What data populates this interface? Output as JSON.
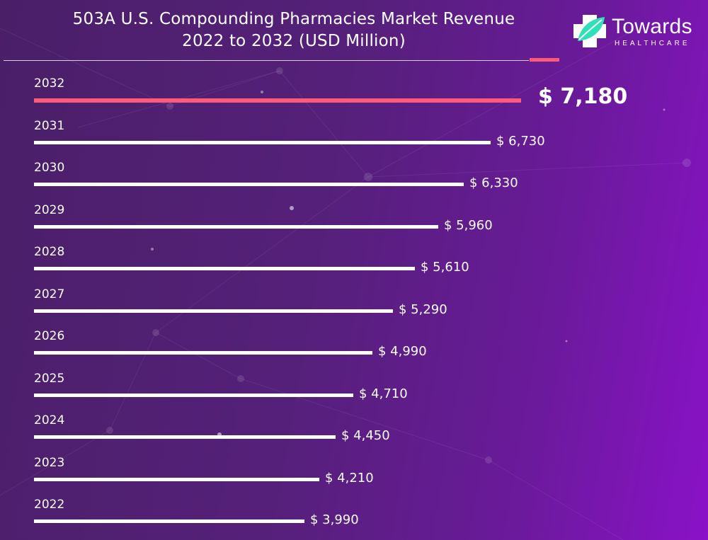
{
  "title_lines": [
    "503A U.S. Compounding Pharmacies Market Revenue",
    "2022 to 2032 (USD Million)"
  ],
  "logo": {
    "word": "Towards",
    "sub": "HEALTHCARE"
  },
  "colors": {
    "highlight": "#ff5a7a",
    "bar": "#ffffff",
    "logo_leaf": "#2fe0b8"
  },
  "chart_data": {
    "type": "bar",
    "orientation": "horizontal",
    "title": "503A U.S. Compounding Pharmacies Market Revenue 2022 to 2032 (USD Million)",
    "categories": [
      "2032",
      "2031",
      "2030",
      "2029",
      "2028",
      "2027",
      "2026",
      "2025",
      "2024",
      "2023",
      "2022"
    ],
    "values": [
      7180,
      6730,
      6330,
      5960,
      5610,
      5290,
      4990,
      4710,
      4450,
      4210,
      3990
    ],
    "value_labels": [
      "$ 7,180",
      "$ 6,730",
      "$ 6,330",
      "$ 5,960",
      "$ 5,610",
      "$ 5,290",
      "$ 4,990",
      "$ 4,710",
      "$ 4,450",
      "$ 4,210",
      "$ 3,990"
    ],
    "highlighted_category": "2032",
    "xlim": [
      0,
      7180
    ],
    "grid": false,
    "legend": "none"
  }
}
